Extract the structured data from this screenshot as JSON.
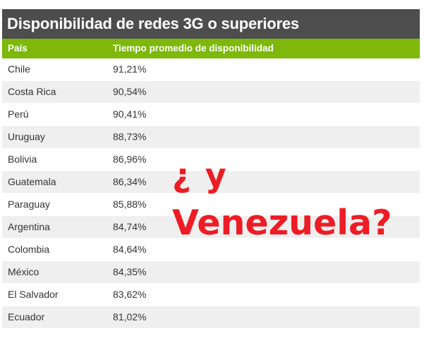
{
  "title": "Disponibilidad de redes 3G o superiores",
  "columns": [
    "País",
    "Tiempo promedio de disponibilidad"
  ],
  "rows": [
    {
      "country": "Chile",
      "value": "91,21%"
    },
    {
      "country": "Costa Rica",
      "value": "90,54%"
    },
    {
      "country": "Perú",
      "value": "90,41%"
    },
    {
      "country": "Uruguay",
      "value": "88,73%"
    },
    {
      "country": "Bolivia",
      "value": "86,96%"
    },
    {
      "country": "Guatemala",
      "value": "86,34%"
    },
    {
      "country": "Paraguay",
      "value": "85,88%"
    },
    {
      "country": "Argentina",
      "value": "84,74%"
    },
    {
      "country": "Colombia",
      "value": "84,64%"
    },
    {
      "country": "México",
      "value": "84,35%"
    },
    {
      "country": "El Salvador",
      "value": "83,62%"
    },
    {
      "country": "Ecuador",
      "value": "81,02%"
    }
  ],
  "overlay": {
    "line1": "¿ y",
    "line2": "Venezuela?"
  },
  "colors": {
    "title_bg": "#4d4d4d",
    "header_bg": "#7db80b",
    "row_alt_bg": "#efefef",
    "overlay_text": "#ee1c24"
  }
}
